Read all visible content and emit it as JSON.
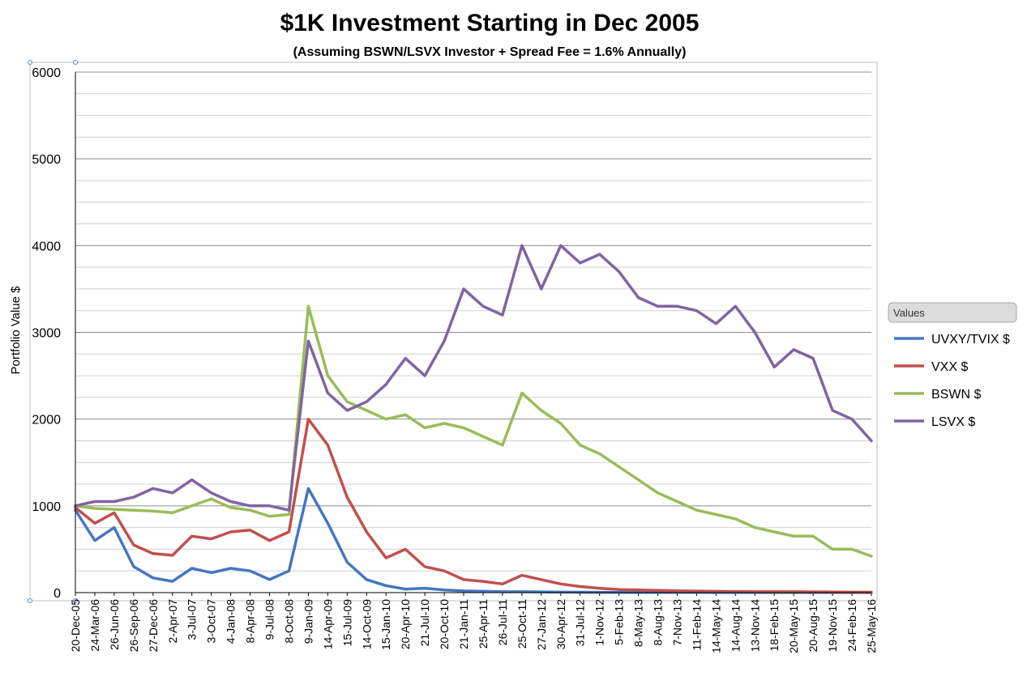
{
  "chart_data": {
    "type": "line",
    "title": "$1K Investment Starting in Dec 2005",
    "subtitle": "(Assuming BSWN/LSVX Investor + Spread Fee = 1.6% Annually)",
    "ylabel": "Portfolio Value $",
    "xlabel": "",
    "ylim": [
      0,
      6000
    ],
    "yticks": [
      0,
      1000,
      2000,
      3000,
      4000,
      5000,
      6000
    ],
    "grid": true,
    "legend_title": "Values",
    "legend_position": "right",
    "x_tick_labels": [
      "20-Dec-05",
      "24-Mar-06",
      "26-Jun-06",
      "26-Sep-06",
      "27-Dec-06",
      "2-Apr-07",
      "3-Jul-07",
      "3-Oct-07",
      "4-Jan-08",
      "8-Apr-08",
      "9-Jul-08",
      "8-Oct-08",
      "9-Jan-09",
      "14-Apr-09",
      "15-Jul-09",
      "14-Oct-09",
      "15-Jan-10",
      "20-Apr-10",
      "21-Jul-10",
      "20-Oct-10",
      "21-Jan-11",
      "25-Apr-11",
      "26-Jul-11",
      "25-Oct-11",
      "27-Jan-12",
      "30-Apr-12",
      "31-Jul-12",
      "1-Nov-12",
      "5-Feb-13",
      "8-May-13",
      "8-Aug-13",
      "7-Nov-13",
      "11-Feb-14",
      "14-May-14",
      "14-Aug-14",
      "13-Nov-14",
      "18-Feb-15",
      "20-May-15",
      "20-Aug-15",
      "19-Nov-15",
      "24-Feb-16",
      "25-May-16"
    ],
    "x": [
      "20-Dec-05",
      "24-Mar-06",
      "26-Jun-06",
      "26-Sep-06",
      "27-Dec-06",
      "2-Apr-07",
      "3-Jul-07",
      "3-Oct-07",
      "4-Jan-08",
      "8-Apr-08",
      "9-Jul-08",
      "8-Oct-08",
      "9-Jan-09",
      "14-Apr-09",
      "15-Jul-09",
      "14-Oct-09",
      "15-Jan-10",
      "20-Apr-10",
      "21-Jul-10",
      "20-Oct-10",
      "21-Jan-11",
      "25-Apr-11",
      "26-Jul-11",
      "25-Oct-11",
      "27-Jan-12",
      "30-Apr-12",
      "31-Jul-12",
      "1-Nov-12",
      "5-Feb-13",
      "8-May-13",
      "8-Aug-13",
      "7-Nov-13",
      "11-Feb-14",
      "14-May-14",
      "14-Aug-14",
      "13-Nov-14",
      "18-Feb-15",
      "20-May-15",
      "20-Aug-15",
      "19-Nov-15",
      "24-Feb-16",
      "25-May-16"
    ],
    "series": [
      {
        "name": "UVXY/TVIX $",
        "color": "#4677be",
        "values": [
          950,
          600,
          750,
          300,
          170,
          130,
          280,
          230,
          280,
          250,
          150,
          250,
          1200,
          800,
          350,
          150,
          80,
          40,
          50,
          30,
          20,
          15,
          10,
          10,
          8,
          6,
          5,
          4,
          3,
          3,
          2,
          2,
          2,
          1,
          1,
          1,
          1,
          1,
          1,
          1,
          1,
          1
        ]
      },
      {
        "name": "VXX $",
        "color": "#c0504d",
        "values": [
          980,
          800,
          920,
          550,
          450,
          430,
          650,
          620,
          700,
          720,
          600,
          700,
          2000,
          1700,
          1100,
          700,
          400,
          500,
          300,
          250,
          150,
          130,
          100,
          200,
          150,
          100,
          70,
          50,
          35,
          30,
          25,
          20,
          18,
          15,
          12,
          10,
          10,
          10,
          8,
          7,
          6,
          5
        ]
      },
      {
        "name": "BSWN $",
        "color": "#9bbb59",
        "values": [
          1000,
          970,
          960,
          950,
          940,
          920,
          1000,
          1080,
          980,
          950,
          880,
          900,
          3300,
          2500,
          2200,
          2100,
          2000,
          2050,
          1900,
          1950,
          1900,
          1800,
          1700,
          2300,
          2100,
          1950,
          1700,
          1600,
          1450,
          1300,
          1150,
          1050,
          950,
          900,
          850,
          750,
          700,
          650,
          650,
          500,
          500,
          420
        ]
      },
      {
        "name": "LSVX $",
        "color": "#8064a2",
        "values": [
          1000,
          1050,
          1050,
          1100,
          1200,
          1150,
          1300,
          1150,
          1050,
          1000,
          1000,
          950,
          2900,
          2300,
          2100,
          2200,
          2400,
          2700,
          2500,
          2900,
          3500,
          3300,
          3200,
          4000,
          3500,
          4000,
          3800,
          3900,
          3700,
          3400,
          3300,
          3300,
          3250,
          3100,
          3300,
          3000,
          2600,
          2800,
          2700,
          2100,
          2000,
          1750
        ]
      }
    ]
  }
}
